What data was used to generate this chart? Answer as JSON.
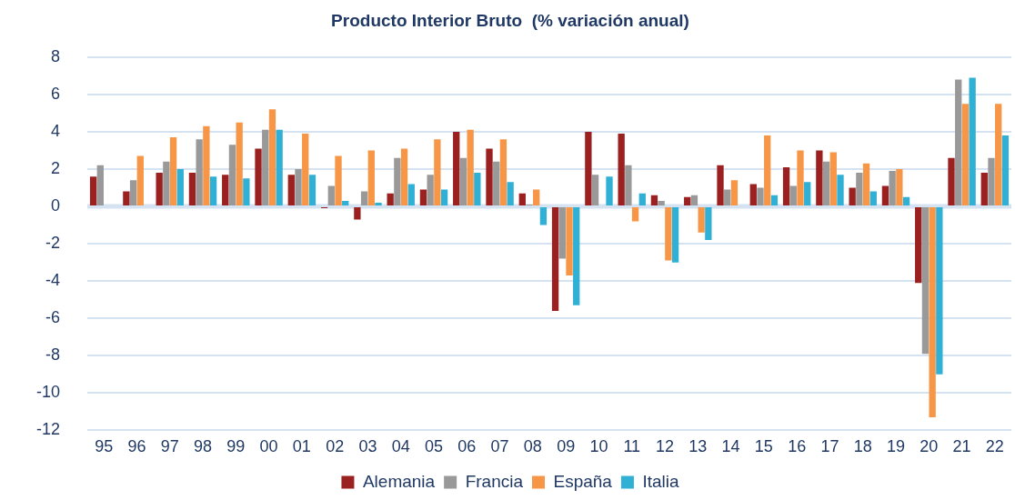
{
  "chart_data": {
    "type": "bar",
    "title": "Producto Interior Bruto  (% variación anual)",
    "categories": [
      "95",
      "96",
      "97",
      "98",
      "99",
      "00",
      "01",
      "02",
      "03",
      "04",
      "05",
      "06",
      "07",
      "08",
      "09",
      "10",
      "11",
      "12",
      "13",
      "14",
      "15",
      "16",
      "17",
      "18",
      "19",
      "20",
      "21",
      "22"
    ],
    "series": [
      {
        "name": "Alemania",
        "color": "#9b2020",
        "values": [
          1.6,
          0.8,
          1.8,
          1.8,
          1.7,
          3.1,
          1.7,
          -0.1,
          -0.7,
          0.7,
          0.9,
          4.0,
          3.1,
          0.7,
          -5.6,
          4.0,
          3.9,
          0.6,
          0.5,
          2.2,
          1.2,
          2.1,
          3.0,
          1.0,
          1.1,
          -4.1,
          2.6,
          1.8
        ]
      },
      {
        "name": "Francia",
        "color": "#999999",
        "values": [
          2.2,
          1.4,
          2.4,
          3.6,
          3.3,
          4.1,
          2.0,
          1.1,
          0.8,
          2.6,
          1.7,
          2.6,
          2.4,
          0.1,
          -2.8,
          1.7,
          2.2,
          0.3,
          0.6,
          0.9,
          1.0,
          1.1,
          2.4,
          1.8,
          1.9,
          -7.9,
          6.8,
          2.6
        ]
      },
      {
        "name": "España",
        "color": "#f79646",
        "values": [
          null,
          2.7,
          3.7,
          4.3,
          4.5,
          5.2,
          3.9,
          2.7,
          3.0,
          3.1,
          3.6,
          4.1,
          3.6,
          0.9,
          -3.7,
          0.0,
          -0.8,
          -2.9,
          -1.4,
          1.4,
          3.8,
          3.0,
          2.9,
          2.3,
          2.0,
          -11.3,
          5.5,
          5.5
        ]
      },
      {
        "name": "Italia",
        "color": "#31b0d5",
        "values": [
          null,
          null,
          2.0,
          1.6,
          1.5,
          4.1,
          1.7,
          0.3,
          0.2,
          1.2,
          0.9,
          1.8,
          1.3,
          -1.0,
          -5.3,
          1.6,
          0.7,
          -3.0,
          -1.8,
          0.0,
          0.6,
          1.3,
          1.7,
          0.8,
          0.5,
          -9.0,
          6.9,
          3.8
        ]
      }
    ],
    "ylim": [
      -12,
      8
    ],
    "yticks": [
      -12,
      -10,
      -8,
      -6,
      -4,
      -2,
      0,
      2,
      4,
      6,
      8
    ],
    "grid": "y",
    "legend": "bottom"
  }
}
